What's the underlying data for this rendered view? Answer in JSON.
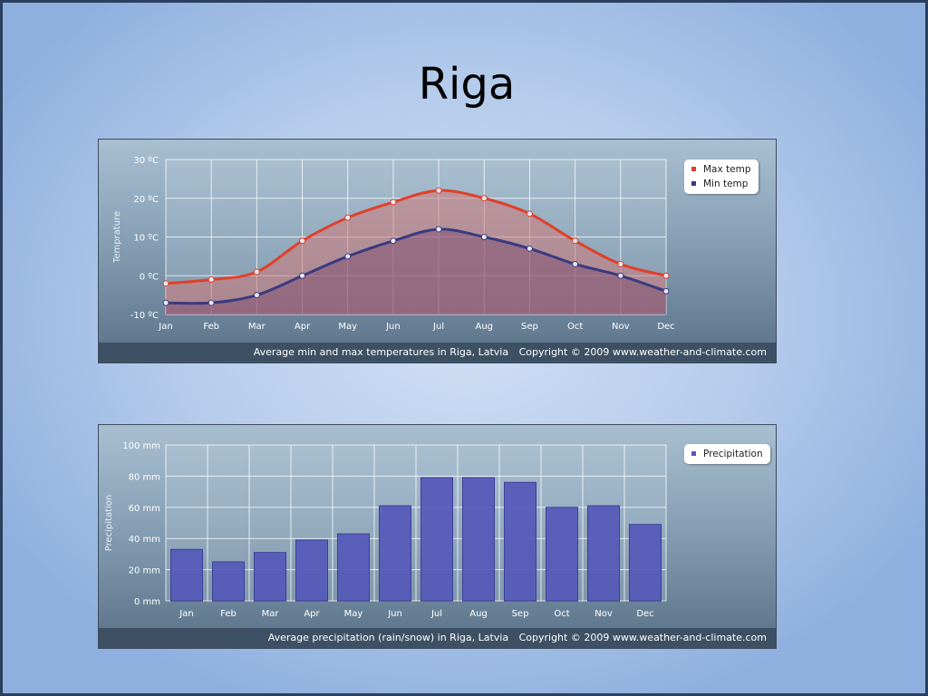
{
  "slide": {
    "title": "Riga"
  },
  "chart_data": [
    {
      "type": "area",
      "ylabel": "Temprature",
      "ylim": [
        -10,
        30
      ],
      "yticks": [
        "30 ºC",
        "20 ºC",
        "10 ºC",
        "0 ºC",
        "-10 ºC"
      ],
      "ytick_values": [
        30,
        20,
        10,
        0,
        -10
      ],
      "categories": [
        "Jan",
        "Feb",
        "Mar",
        "Apr",
        "May",
        "Jun",
        "Jul",
        "Aug",
        "Sep",
        "Oct",
        "Nov",
        "Dec"
      ],
      "series": [
        {
          "name": "Max temp",
          "color": "#e0402a",
          "values": [
            -2,
            -1,
            1,
            9,
            15,
            19,
            22,
            20,
            16,
            9,
            3,
            0
          ]
        },
        {
          "name": "Min temp",
          "color": "#3a3a80",
          "values": [
            -7,
            -7,
            -5,
            0,
            5,
            9,
            12,
            10,
            7,
            3,
            0,
            -4
          ]
        }
      ],
      "legend_position": "top-right",
      "grid": true,
      "caption": "Average min and max temperatures in Riga, Latvia",
      "copyright": "Copyright © 2009 www.weather-and-climate.com"
    },
    {
      "type": "bar",
      "ylabel": "Precipitation",
      "ylim": [
        0,
        100
      ],
      "yticks": [
        "100 mm",
        "80 mm",
        "60 mm",
        "40 mm",
        "20 mm",
        "0 mm"
      ],
      "ytick_values": [
        100,
        80,
        60,
        40,
        20,
        0
      ],
      "categories": [
        "Jan",
        "Feb",
        "Mar",
        "Apr",
        "May",
        "Jun",
        "Jul",
        "Aug",
        "Sep",
        "Oct",
        "Nov",
        "Dec"
      ],
      "series": [
        {
          "name": "Precipitation",
          "color": "#5558b8",
          "values": [
            33,
            25,
            31,
            39,
            43,
            61,
            79,
            79,
            76,
            60,
            61,
            49
          ]
        }
      ],
      "legend_position": "top-right",
      "grid": true,
      "caption": "Average precipitation (rain/snow) in Riga, Latvia",
      "copyright": "Copyright © 2009 www.weather-and-climate.com"
    }
  ]
}
